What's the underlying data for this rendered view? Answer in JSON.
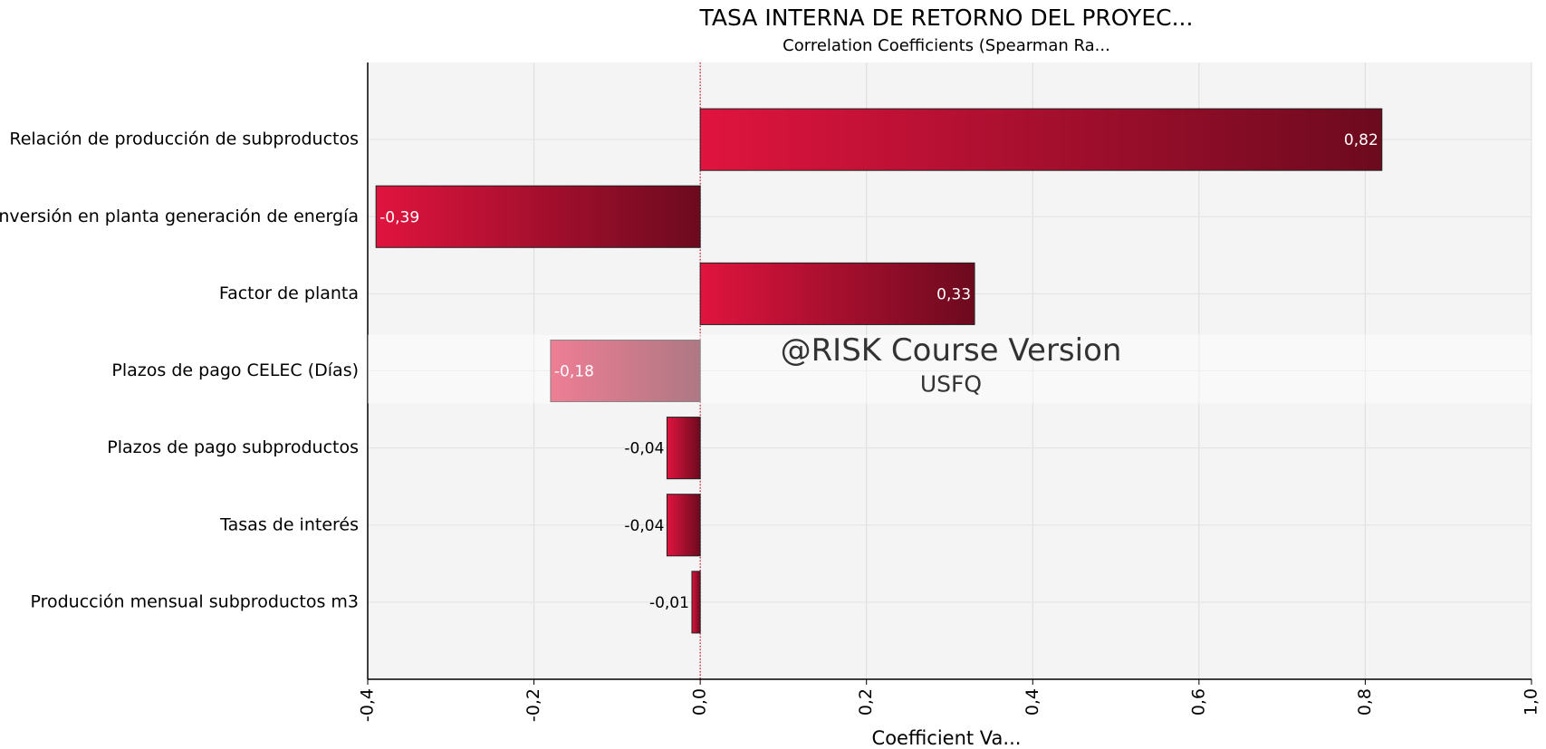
{
  "chart_data": {
    "type": "hbar",
    "title": "TASA INTERNA DE RETORNO DEL PROYEC...",
    "subtitle": "Correlation Coefficients (Spearman Ra...",
    "xlabel": "Coefficient Va...",
    "watermark": [
      "@RISK Course Version",
      "USFQ"
    ],
    "categories": [
      "Relación de producción de subproductos",
      "Inversión en planta generación de energía",
      "Factor de planta",
      "Plazos de pago CELEC (Días)",
      "Plazos de pago subproductos",
      "Tasas de interés",
      "Producción mensual subproductos m3"
    ],
    "values": [
      0.82,
      -0.39,
      0.33,
      -0.18,
      -0.04,
      -0.04,
      -0.01
    ],
    "value_labels": [
      "0,82",
      "-0,39",
      "0,33",
      "-0,18",
      "-0,04",
      "-0,04",
      "-0,01"
    ],
    "colors": [
      "#e0143e",
      "#6c0a1e"
    ],
    "xlim": [
      -0.4,
      1.0
    ],
    "xticks": [
      {
        "value": -0.4,
        "label": "-0,4"
      },
      {
        "value": -0.2,
        "label": "-0,2"
      },
      {
        "value": 0.0,
        "label": "0,0"
      },
      {
        "value": 0.2,
        "label": "0,2"
      },
      {
        "value": 0.4,
        "label": "0,4"
      },
      {
        "value": 0.6,
        "label": "0,6"
      },
      {
        "value": 0.8,
        "label": "0,8"
      },
      {
        "value": 1.0,
        "label": "1,0"
      }
    ],
    "grid": true
  }
}
